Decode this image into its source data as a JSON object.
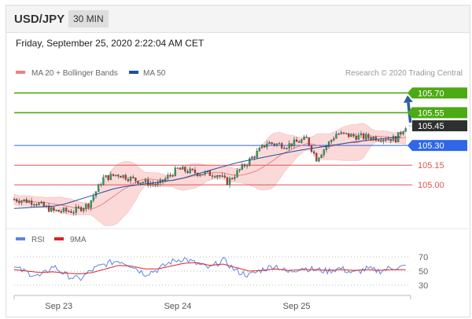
{
  "header": {
    "symbol": "USD/JPY",
    "timeframe": "30 MIN"
  },
  "timestamp": "Friday, September 25, 2020 2:22:04 AM CET",
  "legend": {
    "ma20_bb": "MA 20 + Bollinger Bands",
    "ma50": "MA 50",
    "rsi": "RSI",
    "nine_ma": "9MA",
    "research": "Research © 2020 Trading Central"
  },
  "colors": {
    "ma20_bb": "#f08080",
    "bollinger_fill": "#fbd3d3",
    "ma50": "#1f4e9c",
    "resistance": "#4caa14",
    "pivot": "#2f67e6",
    "support": "#e05555",
    "current": "#2f2f2f",
    "rsi": "#5b86e5",
    "nine_ma": "#dd2222",
    "candle_up": "#26a65b",
    "candle_down": "#c0392b",
    "arrow": "#2d5f9e"
  },
  "chart_data": [
    {
      "type": "candlestick",
      "title": "",
      "ylim": [
        104.72,
        105.78
      ],
      "x_ticks": [
        "Sep 23",
        "Sep 24",
        "Sep 25"
      ],
      "levels": [
        {
          "value": 105.7,
          "label": "105.70",
          "kind": "resistance"
        },
        {
          "value": 105.55,
          "label": "105.55",
          "kind": "resistance"
        },
        {
          "value": 105.3,
          "label": "105.30",
          "kind": "pivot"
        },
        {
          "value": 105.15,
          "label": "105.15",
          "kind": "support"
        },
        {
          "value": 105.0,
          "label": "105.00",
          "kind": "support"
        }
      ],
      "current_price": {
        "value": 105.45,
        "label": "105.45"
      },
      "price_path": [
        [
          "Sep 22 15:00",
          104.89
        ],
        [
          "Sep 22 19:00",
          104.87
        ],
        [
          "Sep 22 23:00",
          104.8
        ],
        [
          "Sep 23 03:00",
          104.8
        ],
        [
          "Sep 23 06:00",
          104.85
        ],
        [
          "Sep 23 09:00",
          105.05
        ],
        [
          "Sep 23 12:00",
          105.08
        ],
        [
          "Sep 23 16:00",
          105.03
        ],
        [
          "Sep 23 20:00",
          105.0
        ],
        [
          "Sep 24 00:00",
          105.12
        ],
        [
          "Sep 24 04:00",
          105.09
        ],
        [
          "Sep 24 08:00",
          105.08
        ],
        [
          "Sep 24 10:00",
          105.02
        ],
        [
          "Sep 24 14:00",
          105.17
        ],
        [
          "Sep 24 18:00",
          105.32
        ],
        [
          "Sep 24 22:00",
          105.3
        ],
        [
          "Sep 25 02:00",
          105.35
        ],
        [
          "Sep 25 04:00",
          105.2
        ],
        [
          "Sep 25 08:00",
          105.39
        ],
        [
          "Sep 25 12:00",
          105.37
        ],
        [
          "Sep 25 16:00",
          105.36
        ],
        [
          "Sep 25 20:00",
          105.35
        ],
        [
          "Sep 25 22:00",
          105.45
        ]
      ],
      "ma50_path": [
        [
          "Sep 22 15:00",
          104.82
        ],
        [
          "Sep 23 00:00",
          104.84
        ],
        [
          "Sep 23 12:00",
          104.98
        ],
        [
          "Sep 24 00:00",
          105.04
        ],
        [
          "Sep 24 12:00",
          105.17
        ],
        [
          "Sep 25 00:00",
          105.26
        ],
        [
          "Sep 25 12:00",
          105.33
        ],
        [
          "Sep 25 22:00",
          105.37
        ]
      ],
      "forecast_arrow": {
        "from": 105.45,
        "to": 105.7
      }
    },
    {
      "type": "line",
      "title": "",
      "ylim": [
        20,
        80
      ],
      "y_ticks": [
        70,
        50,
        30
      ],
      "series": [
        {
          "name": "RSI",
          "values": [
            55,
            48,
            42,
            57,
            44,
            38,
            52,
            60,
            65,
            58,
            46,
            52,
            63,
            68,
            60,
            54,
            66,
            50,
            44,
            52,
            58,
            48,
            55,
            52,
            50,
            54,
            47,
            53,
            50,
            55,
            56
          ]
        },
        {
          "name": "9MA",
          "values": [
            52,
            50,
            48,
            49,
            47,
            46,
            48,
            53,
            58,
            57,
            53,
            53,
            57,
            61,
            62,
            58,
            60,
            55,
            50,
            51,
            53,
            51,
            52,
            52,
            51,
            52,
            51,
            52,
            51,
            52,
            52
          ]
        }
      ]
    }
  ]
}
